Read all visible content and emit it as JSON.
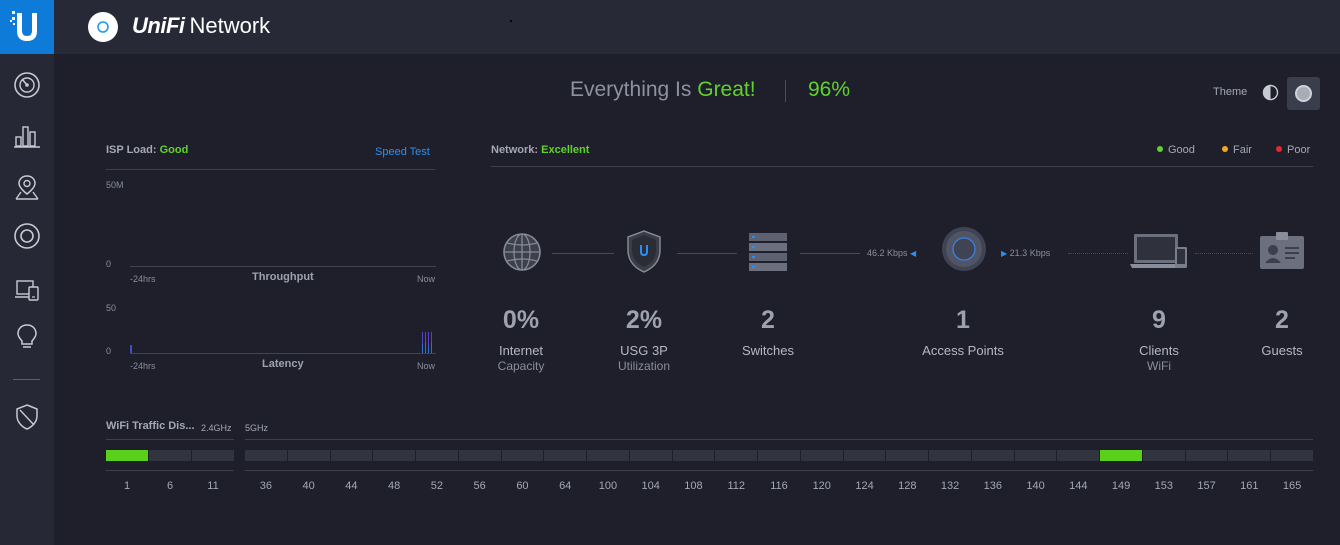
{
  "app": {
    "brand_unifi": "UniFi",
    "brand_network": "Network"
  },
  "sidebar": {
    "items": [
      {
        "icon": "dashboard-icon"
      },
      {
        "icon": "statistics-icon"
      },
      {
        "icon": "map-icon"
      },
      {
        "icon": "devices-icon"
      },
      {
        "icon": "clients-icon"
      },
      {
        "icon": "insights-icon"
      },
      {
        "icon": "shield-icon"
      }
    ]
  },
  "status": {
    "prefix": "Everything Is",
    "value": "Great!",
    "score": "96%",
    "theme_label": "Theme"
  },
  "isp": {
    "label": "ISP Load:",
    "value": "Good",
    "speed_test": "Speed Test",
    "throughput": {
      "ymax": "50M",
      "ymin": "0",
      "xstart": "-24hrs",
      "xend": "Now",
      "caption": "Throughput"
    },
    "latency": {
      "ymax": "50",
      "ymin": "0",
      "xstart": "-24hrs",
      "xend": "Now",
      "caption": "Latency"
    }
  },
  "network": {
    "label": "Network:",
    "value": "Excellent",
    "legend": [
      {
        "label": "Good",
        "color": "#5fd32b"
      },
      {
        "label": "Fair",
        "color": "#f5a623"
      },
      {
        "label": "Poor",
        "color": "#e8262b"
      }
    ],
    "download_rate": "46.2 Kbps",
    "upload_rate": "21.3 Kbps",
    "stats": [
      {
        "value": "0%",
        "label": "Internet",
        "sub": "Capacity",
        "icon": "globe-icon"
      },
      {
        "value": "2%",
        "label": "USG 3P",
        "sub": "Utilization",
        "icon": "gateway-shield-icon"
      },
      {
        "value": "2",
        "label": "Switches",
        "sub": "",
        "icon": "switch-stack-icon"
      },
      {
        "value": "1",
        "label": "Access Points",
        "sub": "",
        "icon": "access-point-icon"
      },
      {
        "value": "9",
        "label": "Clients",
        "sub": "WiFi",
        "icon": "laptop-phone-icon"
      },
      {
        "value": "2",
        "label": "Guests",
        "sub": "",
        "icon": "guest-badge-icon"
      }
    ]
  },
  "wifi": {
    "title": "WiFi Traffic Dis...",
    "band_24": "2.4GHz",
    "band_5": "5GHz",
    "channels_24": [
      "1",
      "6",
      "11"
    ],
    "channels_5": [
      "36",
      "40",
      "44",
      "48",
      "52",
      "56",
      "60",
      "64",
      "100",
      "104",
      "108",
      "112",
      "116",
      "120",
      "124",
      "128",
      "132",
      "136",
      "140",
      "144",
      "149",
      "153",
      "157",
      "161",
      "165"
    ],
    "active_channels": [
      "1",
      "149"
    ]
  }
}
